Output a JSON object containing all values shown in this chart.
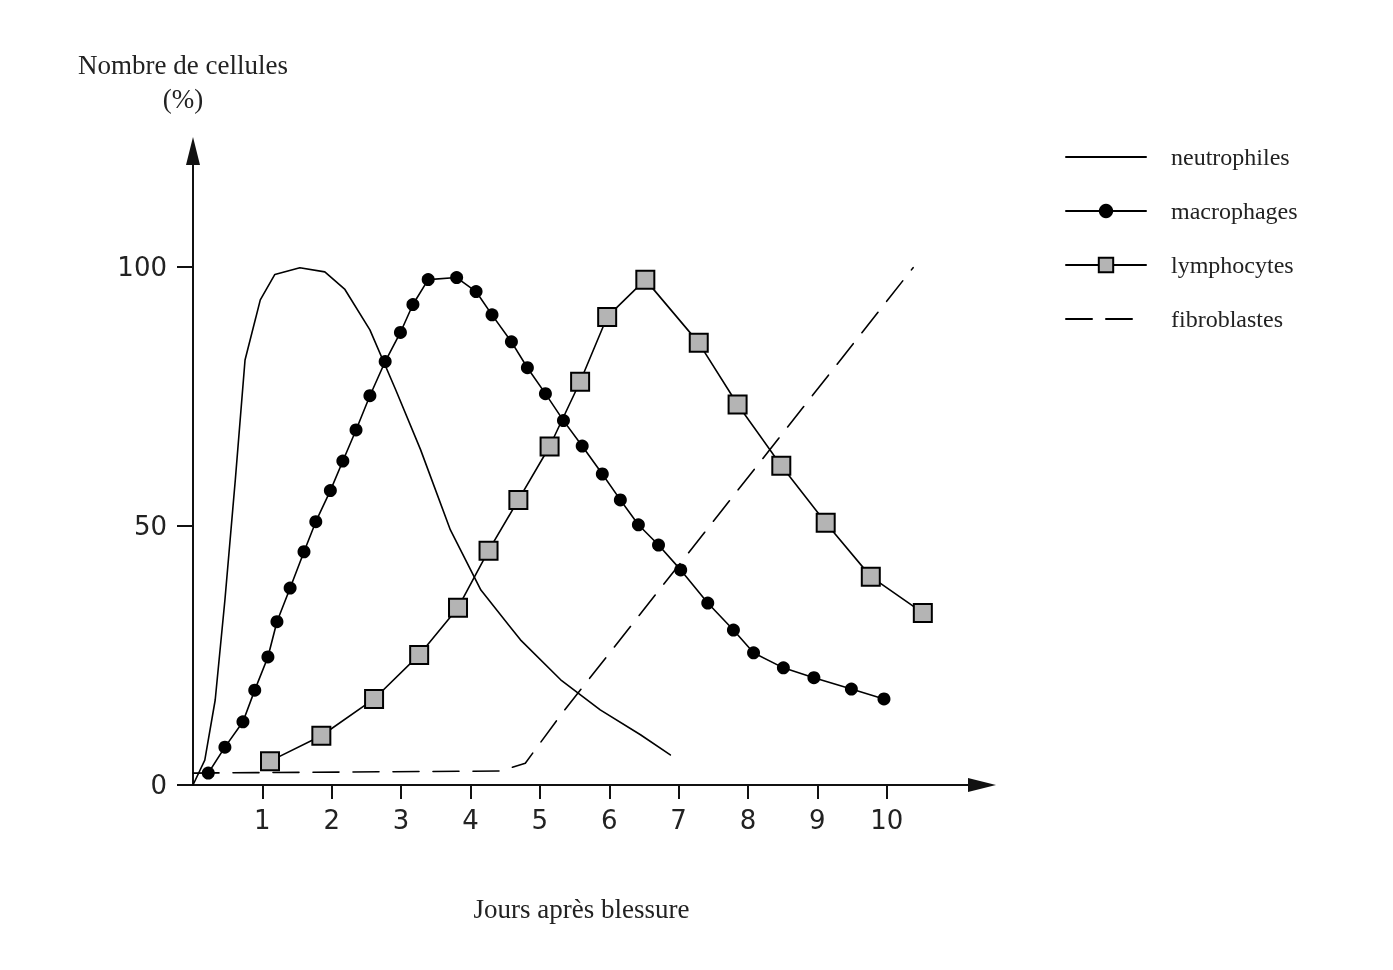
{
  "chart_data": {
    "type": "line",
    "ylabel": "Nombre de cellules\n(%)",
    "xlabel": "Jours après blessure",
    "xlim": [
      0,
      11.2
    ],
    "ylim": [
      0,
      120
    ],
    "xticks": [
      1,
      2,
      3,
      4,
      5,
      6,
      7,
      8,
      9,
      10
    ],
    "yticks": [
      0,
      50,
      100
    ],
    "grid": false,
    "legend": "top right",
    "series": [
      {
        "name": "neutrophiles",
        "color": "#000000",
        "marker": "none",
        "line_style": "solid",
        "x": [
          0,
          0.17,
          0.32,
          0.46,
          0.61,
          0.75,
          0.97,
          1.18,
          1.54,
          1.9,
          2.19,
          2.55,
          2.92,
          3.28,
          3.71,
          4.15,
          4.72,
          5.3,
          5.87,
          6.45,
          6.88
        ],
        "values": [
          0,
          4.8,
          16.4,
          35.7,
          58.9,
          82,
          93.6,
          98.5,
          99.8,
          99,
          95.6,
          87.8,
          76.3,
          64.7,
          49.2,
          37.6,
          28,
          20.3,
          14.5,
          9.7,
          5.8
        ]
      },
      {
        "name": "macrophages",
        "color": "#000000",
        "marker": "circle",
        "line_style": "solid",
        "x": [
          0.22,
          0.46,
          0.72,
          0.89,
          1.08,
          1.21,
          1.4,
          1.6,
          1.77,
          1.98,
          2.16,
          2.35,
          2.55,
          2.77,
          2.99,
          3.17,
          3.39,
          3.8,
          4.08,
          4.31,
          4.59,
          4.82,
          5.08,
          5.34,
          5.61,
          5.9,
          6.16,
          6.42,
          6.71,
          7.03,
          7.42,
          7.79,
          8.08,
          8.51,
          8.95,
          9.49,
          9.96
        ],
        "values": [
          2.3,
          7.3,
          12.2,
          18.3,
          24.7,
          31.5,
          38,
          45,
          50.8,
          56.8,
          62.5,
          68.5,
          75.1,
          81.7,
          87.3,
          92.7,
          97.5,
          97.9,
          95.2,
          90.7,
          85.5,
          80.5,
          75.5,
          70.3,
          65.4,
          60,
          55,
          50.2,
          46.3,
          41.5,
          35.1,
          29.9,
          25.5,
          22.6,
          20.7,
          18.5,
          16.6
        ]
      },
      {
        "name": "lymphocytes",
        "color": "#000000",
        "marker": "square",
        "line_style": "solid",
        "x": [
          1.11,
          1.85,
          2.61,
          3.26,
          3.82,
          4.26,
          4.69,
          5.14,
          5.58,
          5.97,
          6.52,
          7.29,
          7.85,
          8.48,
          9.12,
          9.77,
          10.52
        ],
        "values": [
          4.6,
          9.5,
          16.6,
          25.1,
          34.2,
          45.2,
          55,
          65.3,
          77.8,
          90.3,
          97.5,
          85.3,
          73.4,
          61.6,
          50.6,
          40.2,
          33.2
        ]
      },
      {
        "name": "fibroblastes",
        "color": "#000000",
        "marker": "none",
        "line_style": "dashed",
        "x": [
          0,
          4.43,
          4.79,
          5.3,
          10.38
        ],
        "values": [
          2.3,
          2.7,
          4.2,
          13.5,
          99.8
        ]
      }
    ]
  }
}
